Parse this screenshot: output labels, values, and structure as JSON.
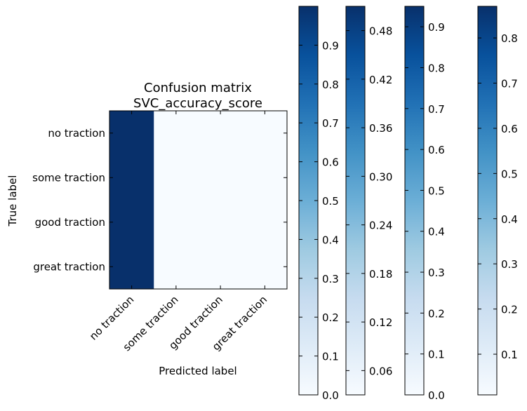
{
  "chart_data": [
    {
      "type": "heatmap",
      "title_lines": [
        "Confusion matrix",
        "SVC_accuracy_score"
      ],
      "xlabel": "Predicted label",
      "ylabel": "True label",
      "x_categories": [
        "no traction",
        "some traction",
        "good traction",
        "great traction"
      ],
      "y_categories": [
        "no traction",
        "some traction",
        "good traction",
        "great traction"
      ],
      "values": [
        [
          1.0,
          0.0,
          0.0,
          0.0
        ],
        [
          1.0,
          0.0,
          0.0,
          0.0
        ],
        [
          1.0,
          0.0,
          0.0,
          0.0
        ],
        [
          1.0,
          0.0,
          0.0,
          0.0
        ]
      ],
      "colormap": "Blues",
      "vmin": 0.0,
      "vmax": 1.0,
      "grid": false
    },
    {
      "type": "colorbar",
      "colormap": "Blues",
      "range": [
        0.0,
        1.0
      ],
      "ticks": [
        0.0,
        0.1,
        0.2,
        0.3,
        0.4,
        0.5,
        0.6,
        0.7,
        0.8,
        0.9
      ],
      "tick_labels": [
        "0.0",
        "0.1",
        "0.2",
        "0.3",
        "0.4",
        "0.5",
        "0.6",
        "0.7",
        "0.8",
        "0.9"
      ]
    },
    {
      "type": "colorbar",
      "colormap": "Blues",
      "range": [
        0.03,
        0.51
      ],
      "ticks": [
        0.06,
        0.12,
        0.18,
        0.24,
        0.3,
        0.36,
        0.42,
        0.48
      ],
      "tick_labels": [
        "0.06",
        "0.12",
        "0.18",
        "0.24",
        "0.30",
        "0.36",
        "0.42",
        "0.48"
      ]
    },
    {
      "type": "colorbar",
      "colormap": "Blues",
      "range": [
        0.0,
        0.95
      ],
      "ticks": [
        0.0,
        0.1,
        0.2,
        0.3,
        0.4,
        0.5,
        0.6,
        0.7,
        0.8,
        0.9
      ],
      "tick_labels": [
        "0.0",
        "0.1",
        "0.2",
        "0.3",
        "0.4",
        "0.5",
        "0.6",
        "0.7",
        "0.8",
        "0.9"
      ]
    },
    {
      "type": "colorbar",
      "colormap": "Blues",
      "range": [
        0.01,
        0.87
      ],
      "ticks": [
        0.1,
        0.2,
        0.3,
        0.4,
        0.5,
        0.6,
        0.7,
        0.8
      ],
      "tick_labels": [
        "0.1",
        "0.2",
        "0.3",
        "0.4",
        "0.5",
        "0.6",
        "0.7",
        "0.8"
      ]
    }
  ],
  "colors": {
    "cmap_low": "#f7fbff",
    "cmap_high": "#08306b",
    "axis": "#000000",
    "background": "#ffffff"
  }
}
